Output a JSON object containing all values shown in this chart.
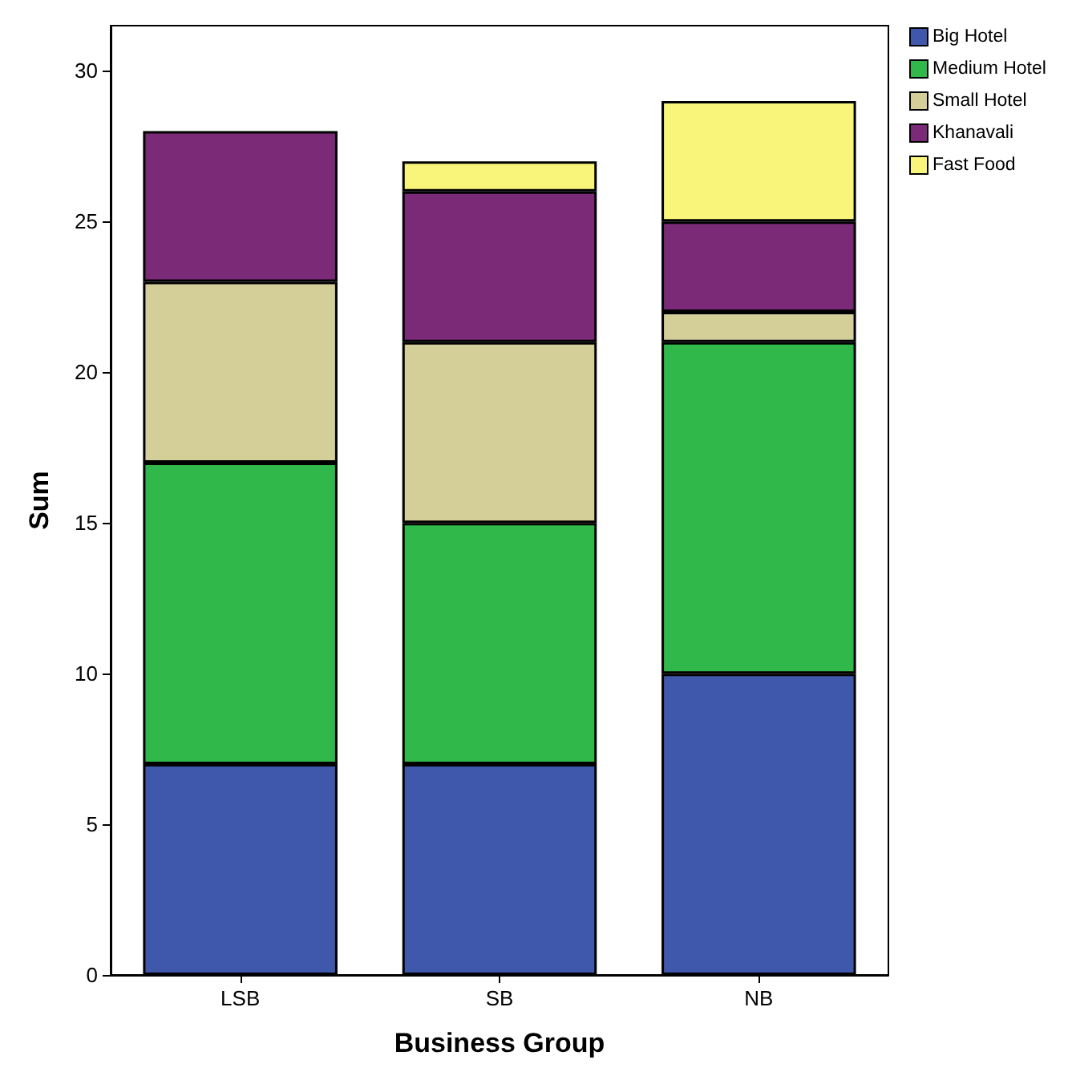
{
  "chart_data": {
    "type": "bar",
    "stacked": true,
    "xlabel": "Business Group",
    "ylabel": "Sum",
    "categories": [
      "LSB",
      "SB",
      "NB"
    ],
    "series": [
      {
        "name": "Big Hotel",
        "color": "#3f58ab",
        "values": [
          7,
          7,
          10
        ]
      },
      {
        "name": "Medium Hotel",
        "color": "#30b84a",
        "values": [
          10,
          8,
          11
        ]
      },
      {
        "name": "Small Hotel",
        "color": "#d4cf98",
        "values": [
          6,
          6,
          1
        ]
      },
      {
        "name": "Khanavali",
        "color": "#7b2a78",
        "values": [
          5,
          5,
          3
        ]
      },
      {
        "name": "Fast Food",
        "color": "#f9f57a",
        "values": [
          null,
          1,
          4
        ]
      }
    ],
    "ylim": [
      0,
      31.5
    ],
    "yticks": [
      0,
      5,
      10,
      15,
      20,
      25,
      30
    ],
    "grid": false,
    "legend": "top right"
  }
}
